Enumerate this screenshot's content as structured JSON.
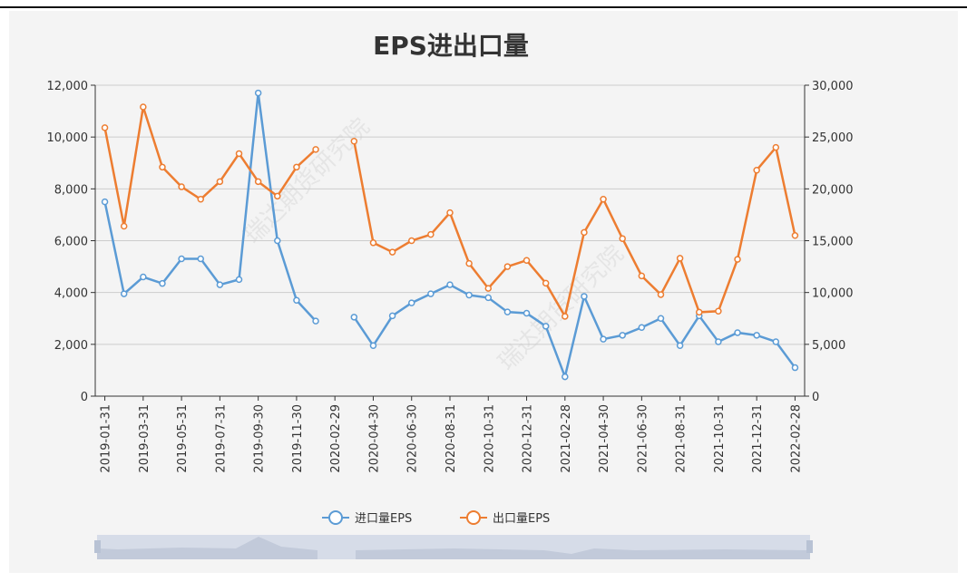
{
  "chart_data": {
    "type": "line",
    "title": "EPS进出口量",
    "watermark": "瑞达期货研究院",
    "categories": [
      "2019-01-31",
      null,
      "2019-03-31",
      null,
      "2019-05-31",
      null,
      "2019-07-31",
      null,
      "2019-09-30",
      null,
      "2019-11-30",
      null,
      "2020-02-29",
      null,
      "2020-04-30",
      null,
      "2020-06-30",
      null,
      "2020-08-31",
      null,
      "2020-10-31",
      null,
      "2020-12-31",
      null,
      "2021-02-28",
      null,
      "2021-04-30",
      null,
      "2021-06-30",
      null,
      "2021-08-31",
      null,
      "2021-10-31",
      null,
      "2021-12-31",
      null,
      "2022-02-28"
    ],
    "series": [
      {
        "name": "进口量EPS",
        "color": "#5b9bd5",
        "values": [
          7500,
          3950,
          4600,
          4350,
          5300,
          5300,
          4300,
          4500,
          11700,
          6000,
          3700,
          2900,
          null,
          3050,
          1950,
          3100,
          3600,
          3950,
          4300,
          3900,
          3800,
          3250,
          3200,
          2700,
          750,
          3850,
          2200,
          2350,
          2650,
          3000,
          1950,
          3100,
          2100,
          2450,
          2350,
          2100,
          1100
        ]
      },
      {
        "name": "出口量EPS",
        "color": "#ed7d31",
        "axis": "y2",
        "values": [
          25900,
          16400,
          27900,
          22100,
          20200,
          19000,
          20700,
          23400,
          20700,
          19300,
          22100,
          23800,
          null,
          24600,
          14800,
          13900,
          15000,
          15600,
          17700,
          12800,
          10400,
          12500,
          13100,
          10900,
          7700,
          15800,
          19000,
          15200,
          11600,
          9800,
          13300,
          8100,
          8200,
          13200,
          21800,
          24000,
          15500
        ]
      }
    ],
    "ylim": [
      0,
      12000
    ],
    "yticks": [
      0,
      {
        "value": 2000,
        "label": "2,000"
      },
      {
        "value": 4000,
        "label": "4,000"
      },
      {
        "value": 6000,
        "label": "6,000"
      },
      {
        "value": 8000,
        "label": "8,000"
      },
      {
        "value": 10000,
        "label": "10,000"
      },
      {
        "value": 12000,
        "label": "12,000"
      }
    ],
    "y2lim": [
      0,
      30000
    ],
    "y2ticks": [
      0,
      {
        "value": 5000,
        "label": "5,000"
      },
      {
        "value": 10000,
        "label": "10,000"
      },
      {
        "value": 15000,
        "label": "15,000"
      },
      {
        "value": 20000,
        "label": "20,000"
      },
      {
        "value": 25000,
        "label": "25,000"
      },
      {
        "value": 30000,
        "label": "30,000"
      }
    ],
    "grid": true,
    "legend": "bottom"
  }
}
